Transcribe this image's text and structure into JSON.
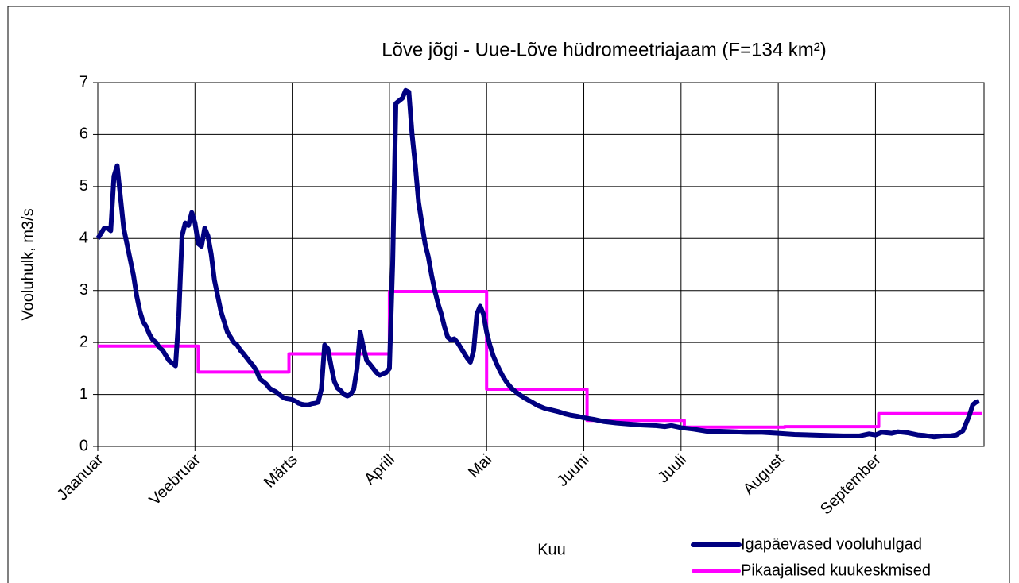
{
  "chart_data": {
    "type": "line",
    "title": "Lõve jõgi - Uue-Lõve hüdromeetriajaam (F=134 km²)",
    "x_label": "Kuu",
    "y_label": "Vooluhulk, m3/s",
    "xlim": [
      0,
      273.5
    ],
    "xticks": [
      {
        "value": 0,
        "label": "Jaanuar"
      },
      {
        "value": 30,
        "label": "Veebruar"
      },
      {
        "value": 60,
        "label": "Märts"
      },
      {
        "value": 90,
        "label": "Aprill"
      },
      {
        "value": 120,
        "label": "Mai"
      },
      {
        "value": 150,
        "label": "Juuni"
      },
      {
        "value": 180,
        "label": "Juuli"
      },
      {
        "value": 210,
        "label": "August"
      },
      {
        "value": 240,
        "label": "September"
      }
    ],
    "ylim": [
      0,
      7
    ],
    "yticks": [
      0,
      1,
      2,
      3,
      4,
      5,
      6,
      7
    ],
    "grid": true,
    "legend": "bottom-right",
    "series": [
      {
        "name": "Igapäevased vooluhulgad",
        "color": "#000080",
        "x": [
          0,
          1,
          2,
          3,
          4,
          5,
          6,
          7,
          8,
          9,
          10,
          11,
          12,
          13,
          14,
          15,
          16,
          17,
          18,
          19,
          20,
          21,
          22,
          23,
          24,
          25,
          26,
          27,
          28,
          29,
          30,
          31,
          32,
          33,
          34,
          35,
          36,
          37,
          38,
          39,
          40,
          41,
          42,
          43,
          44,
          45,
          46,
          47,
          48,
          49,
          50,
          51,
          52,
          53,
          54,
          55,
          56,
          57,
          58,
          59,
          60,
          61,
          62,
          63,
          64,
          65,
          66,
          67,
          68,
          69,
          70,
          71,
          72,
          73,
          74,
          75,
          76,
          77,
          78,
          79,
          80,
          81,
          82,
          83,
          84,
          85,
          86,
          87,
          88,
          89,
          90,
          91,
          92,
          93,
          94,
          95,
          96,
          97,
          98,
          99,
          100,
          101,
          102,
          103,
          104,
          105,
          106,
          107,
          108,
          109,
          110,
          111,
          112,
          113,
          114,
          115,
          116,
          117,
          118,
          119,
          120,
          121,
          122,
          123,
          124,
          125,
          126,
          127,
          128,
          129,
          130,
          132,
          134,
          136,
          138,
          140,
          142,
          144,
          146,
          148,
          150,
          153,
          156,
          160,
          164,
          168,
          172,
          175,
          177,
          180,
          184,
          188,
          192,
          196,
          200,
          205,
          210,
          215,
          220,
          225,
          230,
          235,
          238,
          240,
          242,
          245,
          247,
          250,
          253,
          255,
          258,
          261,
          263,
          265,
          267,
          268,
          269,
          270,
          271,
          272
        ],
        "values": [
          4.0,
          4.1,
          4.2,
          4.2,
          4.15,
          5.2,
          5.4,
          4.8,
          4.2,
          3.9,
          3.6,
          3.3,
          2.9,
          2.6,
          2.4,
          2.3,
          2.15,
          2.05,
          2.0,
          1.9,
          1.85,
          1.75,
          1.65,
          1.6,
          1.55,
          2.5,
          4.05,
          4.3,
          4.25,
          4.5,
          4.3,
          3.9,
          3.85,
          4.2,
          4.05,
          3.7,
          3.2,
          2.9,
          2.6,
          2.4,
          2.2,
          2.1,
          2.0,
          1.95,
          1.85,
          1.78,
          1.7,
          1.62,
          1.55,
          1.45,
          1.3,
          1.25,
          1.2,
          1.12,
          1.08,
          1.05,
          1.0,
          0.95,
          0.92,
          0.91,
          0.9,
          0.87,
          0.83,
          0.81,
          0.8,
          0.8,
          0.82,
          0.83,
          0.85,
          1.1,
          1.95,
          1.88,
          1.55,
          1.25,
          1.12,
          1.07,
          1.0,
          0.97,
          1.0,
          1.1,
          1.5,
          2.2,
          1.9,
          1.65,
          1.58,
          1.5,
          1.42,
          1.37,
          1.4,
          1.42,
          1.5,
          3.5,
          6.6,
          6.65,
          6.7,
          6.85,
          6.82,
          6.0,
          5.4,
          4.7,
          4.3,
          3.9,
          3.65,
          3.3,
          3.0,
          2.75,
          2.55,
          2.3,
          2.1,
          2.05,
          2.07,
          2.0,
          1.9,
          1.8,
          1.7,
          1.62,
          1.85,
          2.55,
          2.7,
          2.55,
          2.2,
          1.95,
          1.75,
          1.6,
          1.47,
          1.35,
          1.25,
          1.17,
          1.1,
          1.05,
          1.0,
          0.92,
          0.85,
          0.78,
          0.73,
          0.7,
          0.67,
          0.63,
          0.6,
          0.58,
          0.55,
          0.52,
          0.48,
          0.45,
          0.43,
          0.41,
          0.4,
          0.38,
          0.4,
          0.36,
          0.33,
          0.29,
          0.29,
          0.28,
          0.27,
          0.27,
          0.25,
          0.23,
          0.22,
          0.21,
          0.2,
          0.2,
          0.24,
          0.22,
          0.27,
          0.25,
          0.28,
          0.26,
          0.22,
          0.21,
          0.18,
          0.2,
          0.2,
          0.22,
          0.3,
          0.45,
          0.6,
          0.8,
          0.85,
          0.87
        ]
      },
      {
        "name": "Pikaajalised kuukeskmised",
        "color": "#ff00ff",
        "x": [
          0,
          31,
          31,
          59,
          59,
          90,
          90,
          120,
          120,
          151,
          151,
          181,
          181,
          212,
          212,
          241,
          241,
          273
        ],
        "values": [
          1.93,
          1.93,
          1.43,
          1.43,
          1.78,
          1.78,
          2.98,
          2.98,
          1.1,
          1.1,
          0.5,
          0.5,
          0.37,
          0.37,
          0.38,
          0.38,
          0.63,
          0.63
        ]
      }
    ]
  }
}
